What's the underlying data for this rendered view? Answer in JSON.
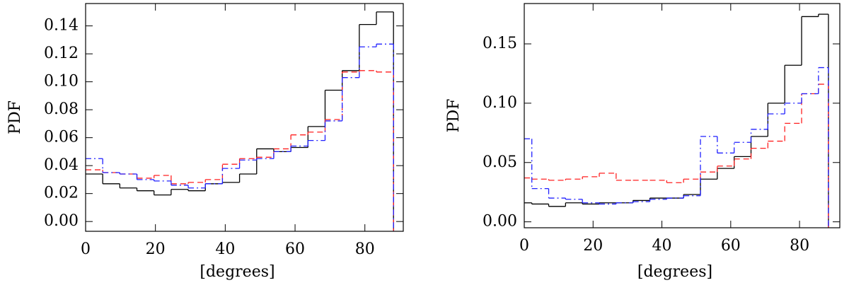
{
  "chart_data": [
    {
      "type": "histogram",
      "xlabel": "[degrees]",
      "ylabel": "PDF",
      "bins": [
        0,
        4.9,
        9.8,
        14.7,
        19.6,
        24.5,
        29.4,
        34.3,
        39.2,
        44.1,
        49,
        53.9,
        58.8,
        63.7,
        68.6,
        73.5,
        78.4,
        83.3,
        88.2
      ],
      "series": [
        {
          "color": "#000000",
          "dash": "solid",
          "values": [
            0.034,
            0.027,
            0.024,
            0.022,
            0.019,
            0.023,
            0.022,
            0.027,
            0.028,
            0.034,
            0.052,
            0.05,
            0.053,
            0.068,
            0.094,
            0.108,
            0.141,
            0.15
          ]
        },
        {
          "color": "#ff2020",
          "dash": "dashed",
          "values": [
            0.037,
            0.035,
            0.034,
            0.031,
            0.033,
            0.027,
            0.028,
            0.03,
            0.041,
            0.045,
            0.046,
            0.052,
            0.062,
            0.064,
            0.073,
            0.107,
            0.108,
            0.107
          ]
        },
        {
          "color": "#2020ff",
          "dash": "dashdot",
          "values": [
            0.045,
            0.035,
            0.034,
            0.03,
            0.029,
            0.026,
            0.024,
            0.027,
            0.038,
            0.044,
            0.045,
            0.05,
            0.054,
            0.058,
            0.072,
            0.103,
            0.125,
            0.127
          ]
        }
      ],
      "xlim": [
        0,
        91
      ],
      "xticks": [
        0,
        20,
        40,
        60,
        80
      ],
      "ylim": [
        -0.007,
        0.156
      ],
      "yticks": [
        {
          "value": 0,
          "label": "0.00"
        },
        {
          "value": 0.02,
          "label": "0.02"
        },
        {
          "value": 0.04,
          "label": "0.04"
        },
        {
          "value": 0.06,
          "label": "0.06"
        },
        {
          "value": 0.08,
          "label": "0.08"
        },
        {
          "value": 0.1,
          "label": "0.10"
        },
        {
          "value": 0.12,
          "label": "0.12"
        },
        {
          "value": 0.14,
          "label": "0.14"
        }
      ]
    },
    {
      "type": "histogram",
      "xlabel": "[degrees]",
      "ylabel": "PDF",
      "bins": [
        0,
        2.2,
        7.1,
        12,
        16.9,
        21.8,
        26.7,
        31.6,
        36.5,
        41.4,
        46.3,
        51.2,
        56.1,
        61,
        65.9,
        70.8,
        75.7,
        80.6,
        85.5,
        88.4
      ],
      "series": [
        {
          "color": "#000000",
          "dash": "solid",
          "values": [
            0.016,
            0.015,
            0.013,
            0.016,
            0.015,
            0.016,
            0.016,
            0.018,
            0.02,
            0.02,
            0.023,
            0.036,
            0.045,
            0.055,
            0.072,
            0.1,
            0.132,
            0.173,
            0.175
          ]
        },
        {
          "color": "#ff2020",
          "dash": "dashed",
          "values": [
            0.037,
            0.036,
            0.035,
            0.036,
            0.038,
            0.041,
            0.035,
            0.035,
            0.035,
            0.033,
            0.036,
            0.042,
            0.047,
            0.053,
            0.062,
            0.068,
            0.083,
            0.108,
            0.116
          ]
        },
        {
          "color": "#2020ff",
          "dash": "dashdot",
          "values": [
            0.07,
            0.028,
            0.02,
            0.019,
            0.016,
            0.015,
            0.016,
            0.017,
            0.019,
            0.02,
            0.022,
            0.072,
            0.058,
            0.067,
            0.078,
            0.091,
            0.1,
            0.108,
            0.13
          ]
        }
      ],
      "xlim": [
        0,
        91.7
      ],
      "xticks": [
        0,
        20,
        40,
        60,
        80
      ],
      "ylim": [
        -0.005,
        0.184
      ],
      "yticks": [
        {
          "value": 0,
          "label": "0.00"
        },
        {
          "value": 0.05,
          "label": "0.05"
        },
        {
          "value": 0.1,
          "label": "0.10"
        },
        {
          "value": 0.15,
          "label": "0.15"
        }
      ]
    }
  ]
}
